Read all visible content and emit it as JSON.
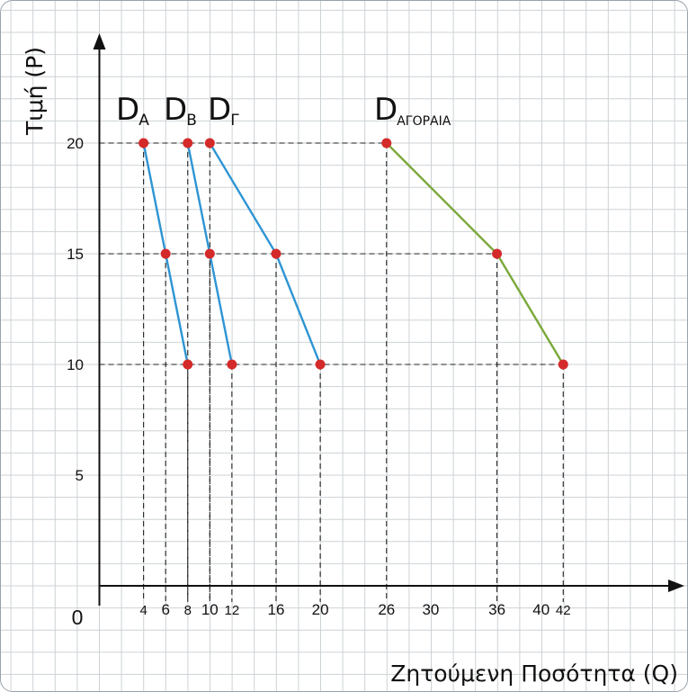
{
  "chart_data": {
    "type": "line",
    "xlabel": "Ζητούμενη Ποσότητα (Q)",
    "ylabel": "Τιμή (P)",
    "xlim": [
      0,
      48
    ],
    "ylim": [
      0,
      22
    ],
    "origin_label": "0",
    "x_ticks": [
      {
        "value": 4,
        "label": "4"
      },
      {
        "value": 6,
        "label": "6"
      },
      {
        "value": 8,
        "label": "8"
      },
      {
        "value": 10,
        "label": "10"
      },
      {
        "value": 12,
        "label": "12"
      },
      {
        "value": 16,
        "label": "16"
      },
      {
        "value": 20,
        "label": "20"
      },
      {
        "value": 26,
        "label": "26"
      },
      {
        "value": 30,
        "label": "30"
      },
      {
        "value": 36,
        "label": "36"
      },
      {
        "value": 40,
        "label": "40"
      },
      {
        "value": 42,
        "label": "42"
      }
    ],
    "y_ticks": [
      {
        "value": 5,
        "label": "5"
      },
      {
        "value": 10,
        "label": "10"
      },
      {
        "value": 15,
        "label": "15"
      },
      {
        "value": 20,
        "label": "20"
      }
    ],
    "series": [
      {
        "label": "D",
        "sub": "A",
        "color": "#2e95d3",
        "points": [
          {
            "x": 4,
            "y": 20
          },
          {
            "x": 6,
            "y": 15
          },
          {
            "x": 8,
            "y": 10
          }
        ]
      },
      {
        "label": "D",
        "sub": "B",
        "color": "#2e95d3",
        "points": [
          {
            "x": 8,
            "y": 20
          },
          {
            "x": 10,
            "y": 15
          },
          {
            "x": 12,
            "y": 10
          }
        ]
      },
      {
        "label": "D",
        "sub": "Γ",
        "color": "#2e95d3",
        "points": [
          {
            "x": 10,
            "y": 20
          },
          {
            "x": 16,
            "y": 15
          },
          {
            "x": 20,
            "y": 10
          }
        ]
      },
      {
        "label": "D",
        "sub": "ΑΓΟΡΑΙΑ",
        "color": "#7aa83a",
        "points": [
          {
            "x": 26,
            "y": 20
          },
          {
            "x": 36,
            "y": 15
          },
          {
            "x": 42,
            "y": 10
          }
        ]
      }
    ],
    "point_color": "#d42a2a",
    "grid": true,
    "dashed_guides": true
  }
}
